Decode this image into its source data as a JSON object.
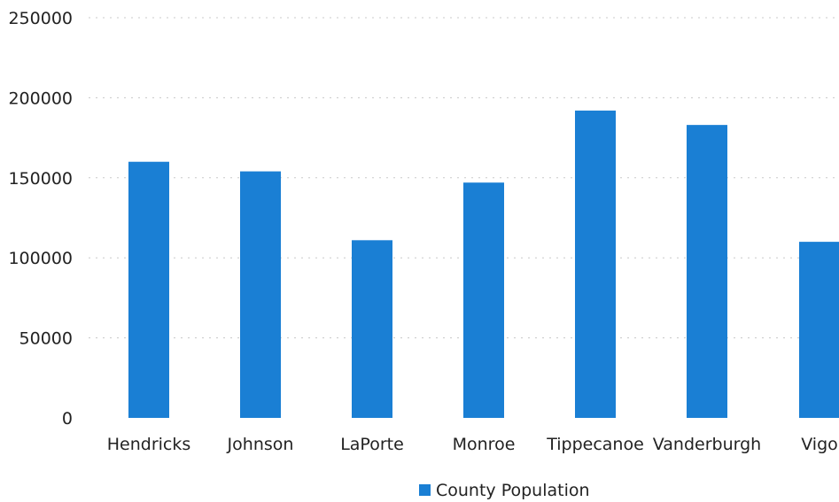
{
  "chart_data": {
    "type": "bar",
    "categories": [
      "Hendricks",
      "Johnson",
      "LaPorte",
      "Monroe",
      "Tippecanoe",
      "Vanderburgh",
      "Vigo"
    ],
    "series": [
      {
        "name": "County Population",
        "values": [
          160000,
          154000,
          111000,
          147000,
          192000,
          183000,
          110000
        ],
        "color": "#1a7fd4"
      }
    ],
    "yticks": [
      "0",
      "50000",
      "100000",
      "150000",
      "200000",
      "250000"
    ],
    "ylim": [
      0,
      250000
    ],
    "grid": true,
    "legend": "bottom",
    "title": "",
    "xlabel": "",
    "ylabel": ""
  }
}
